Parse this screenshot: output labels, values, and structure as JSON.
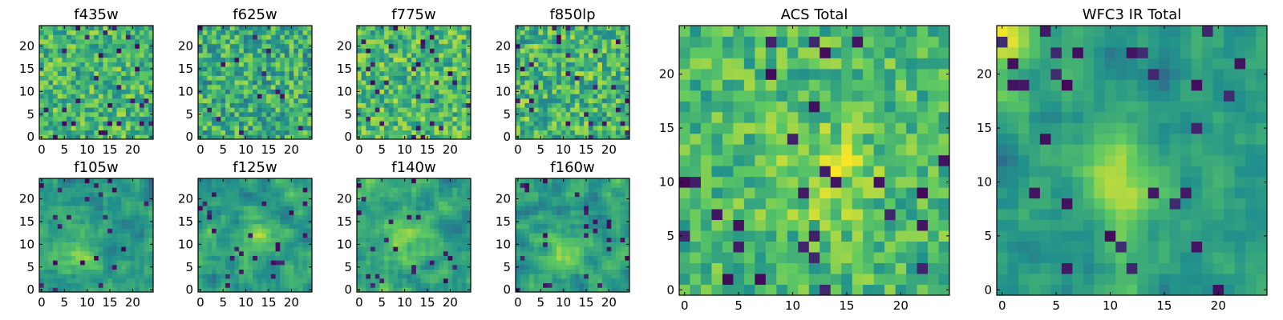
{
  "chart_data": {
    "type": "heatmap",
    "grid_size": 25,
    "colormap": "viridis",
    "colormap_stops": [
      "#440154",
      "#3b528b",
      "#21918c",
      "#5ec962",
      "#fde725"
    ],
    "panels": [
      {
        "id": "f435w",
        "title": "f435w",
        "xticks": [
          0,
          5,
          10,
          15,
          20
        ],
        "yticks": [
          0,
          5,
          10,
          15,
          20
        ],
        "texture": "noise",
        "seed": 11,
        "mean": 0.66,
        "spread": 0.22
      },
      {
        "id": "f625w",
        "title": "f625w",
        "xticks": [
          0,
          5,
          10,
          15,
          20
        ],
        "yticks": [
          0,
          5,
          10,
          15,
          20
        ],
        "texture": "noise",
        "seed": 23,
        "mean": 0.62,
        "spread": 0.24
      },
      {
        "id": "f775w",
        "title": "f775w",
        "xticks": [
          0,
          5,
          10,
          15,
          20
        ],
        "yticks": [
          0,
          5,
          10,
          15,
          20
        ],
        "texture": "noise",
        "seed": 37,
        "mean": 0.68,
        "spread": 0.22
      },
      {
        "id": "f850lp",
        "title": "f850lp",
        "xticks": [
          0,
          5,
          10,
          15,
          20
        ],
        "yticks": [
          0,
          5,
          10,
          15,
          20
        ],
        "texture": "noise",
        "seed": 41,
        "mean": 0.66,
        "spread": 0.24
      },
      {
        "id": "f105w",
        "title": "f105w",
        "xticks": [
          0,
          5,
          10,
          15,
          20
        ],
        "yticks": [
          0,
          5,
          10,
          15,
          20
        ],
        "texture": "blob",
        "seed": 53,
        "mean": 0.55,
        "spread": 0.16,
        "peak": [
          9,
          7
        ],
        "peak_amp": 0.28
      },
      {
        "id": "f125w",
        "title": "f125w",
        "xticks": [
          0,
          5,
          10,
          15,
          20
        ],
        "yticks": [
          0,
          5,
          10,
          15,
          20
        ],
        "texture": "blob",
        "seed": 67,
        "mean": 0.55,
        "spread": 0.16,
        "peak": [
          12,
          11
        ],
        "peak_amp": 0.26
      },
      {
        "id": "f140w",
        "title": "f140w",
        "xticks": [
          0,
          5,
          10,
          15,
          20
        ],
        "yticks": [
          0,
          5,
          10,
          15,
          20
        ],
        "texture": "blob",
        "seed": 79,
        "mean": 0.58,
        "spread": 0.16,
        "peak": [
          10,
          11
        ],
        "peak_amp": 0.24
      },
      {
        "id": "f160w",
        "title": "f160w",
        "xticks": [
          0,
          5,
          10,
          15,
          20
        ],
        "yticks": [
          0,
          5,
          10,
          15,
          20
        ],
        "texture": "blob",
        "seed": 83,
        "mean": 0.55,
        "spread": 0.16,
        "peak": [
          10,
          8
        ],
        "peak_amp": 0.26
      },
      {
        "id": "acs-total",
        "title": "ACS Total",
        "xticks": [
          0,
          5,
          10,
          15,
          20
        ],
        "yticks": [
          0,
          5,
          10,
          15,
          20
        ],
        "texture": "noise",
        "seed": 97,
        "mean": 0.68,
        "spread": 0.18,
        "peak": [
          13,
          11
        ],
        "peak_amp": 0.18
      },
      {
        "id": "wfc3-ir-total",
        "title": "WFC3 IR Total",
        "xticks": [
          0,
          5,
          10,
          15,
          20
        ],
        "yticks": [
          0,
          5,
          10,
          15,
          20
        ],
        "texture": "blob",
        "seed": 101,
        "mean": 0.55,
        "spread": 0.13,
        "peak": [
          11,
          10
        ],
        "peak_amp": 0.32,
        "corner_bright": true
      }
    ]
  }
}
